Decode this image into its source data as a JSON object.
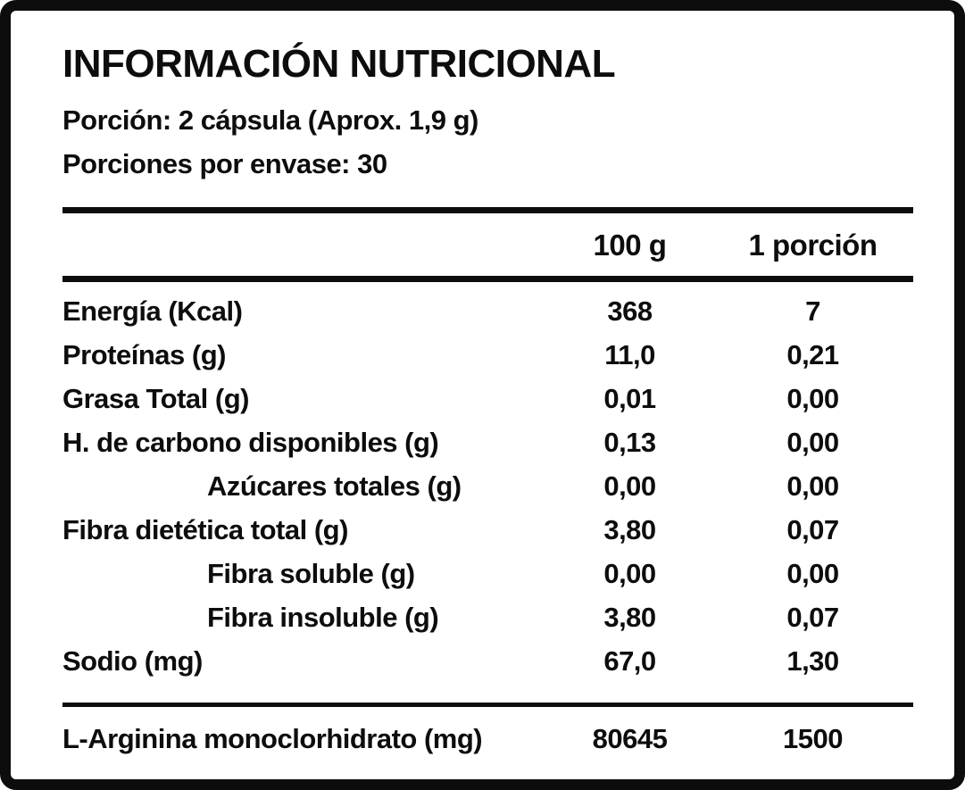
{
  "label": {
    "title": "INFORMACIÓN NUTRICIONAL",
    "serving": {
      "portion": "Porción: 2 cápsula (Aprox. 1,9 g)",
      "per_container": "Porciones por envase: 30"
    },
    "columns": {
      "per_100g": "100 g",
      "per_portion": "1 porción"
    },
    "rows": [
      {
        "name": "Energía (Kcal)",
        "per_100g": "368",
        "per_portion": "7"
      },
      {
        "name": "Proteínas (g)",
        "per_100g": "11,0",
        "per_portion": "0,21"
      },
      {
        "name": "Grasa Total (g)",
        "per_100g": "0,01",
        "per_portion": "0,00"
      },
      {
        "name": "H. de carbono disponibles (g)",
        "per_100g": "0,13",
        "per_portion": "0,00"
      },
      {
        "name": "Azúcares totales (g)",
        "per_100g": "0,00",
        "per_portion": "0,00"
      },
      {
        "name": "Fibra dietética total (g)",
        "per_100g": "3,80",
        "per_portion": "0,07"
      },
      {
        "name": "Fibra soluble (g)",
        "per_100g": "0,00",
        "per_portion": "0,00"
      },
      {
        "name": "Fibra insoluble (g)",
        "per_100g": "3,80",
        "per_portion": "0,07"
      },
      {
        "name": "Sodio (mg)",
        "per_100g": "67,0",
        "per_portion": "1,30"
      }
    ],
    "active_ingredient": {
      "name": "L-Arginina monoclorhidrato (mg)",
      "per_100g": "80645",
      "per_portion": "1500"
    },
    "colors": {
      "ink": "#0d0d0d",
      "background": "#ffffff"
    }
  }
}
